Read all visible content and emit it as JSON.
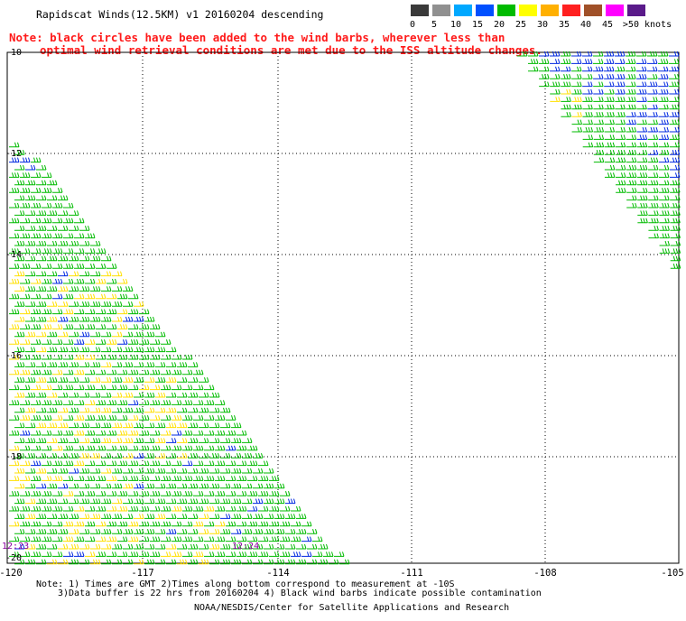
{
  "title": "Rapidscat Winds(12.5KM) v1 20160204 descending",
  "note": {
    "line1": "Note: black circles have been added to the wind barbs, wherever less than",
    "line2": "optimal wind retrieval conditions are met due to the ISS altitude changes."
  },
  "legend": {
    "labels": [
      "0",
      "5",
      "10",
      "15",
      "20",
      "25",
      "30",
      "35",
      "40",
      "45",
      ">50 knots"
    ],
    "colors": [
      "#3a3a3a",
      "#909090",
      "#00a8ff",
      "#0050ff",
      "#00bb00",
      "#ffff00",
      "#ffb000",
      "#ff2020",
      "#a05028",
      "#ff00ff",
      "#5a1a8a"
    ]
  },
  "axes": {
    "lat_labels": [
      "-10",
      "-12",
      "-14",
      "-16",
      "-18",
      "-20"
    ],
    "lon_labels": [
      "-120",
      "-117",
      "-114",
      "-111",
      "-108",
      "-105"
    ]
  },
  "times": {
    "left": "12:23",
    "right": "12:24"
  },
  "footnote": {
    "line1": "Note: 1) Times are GMT 2)Times along bottom correspond to measurement at -10S",
    "line2": "3)Data buffer is 22 hrs from 20160204 4) Black wind barbs indicate possible contamination"
  },
  "credit": "NOAA/NESDIS/Center for Satellite Applications and Research",
  "map": {
    "lon_range": [
      -120,
      -105
    ],
    "lat_range": [
      -20.3,
      -9.95
    ],
    "grid": "dotted"
  }
}
